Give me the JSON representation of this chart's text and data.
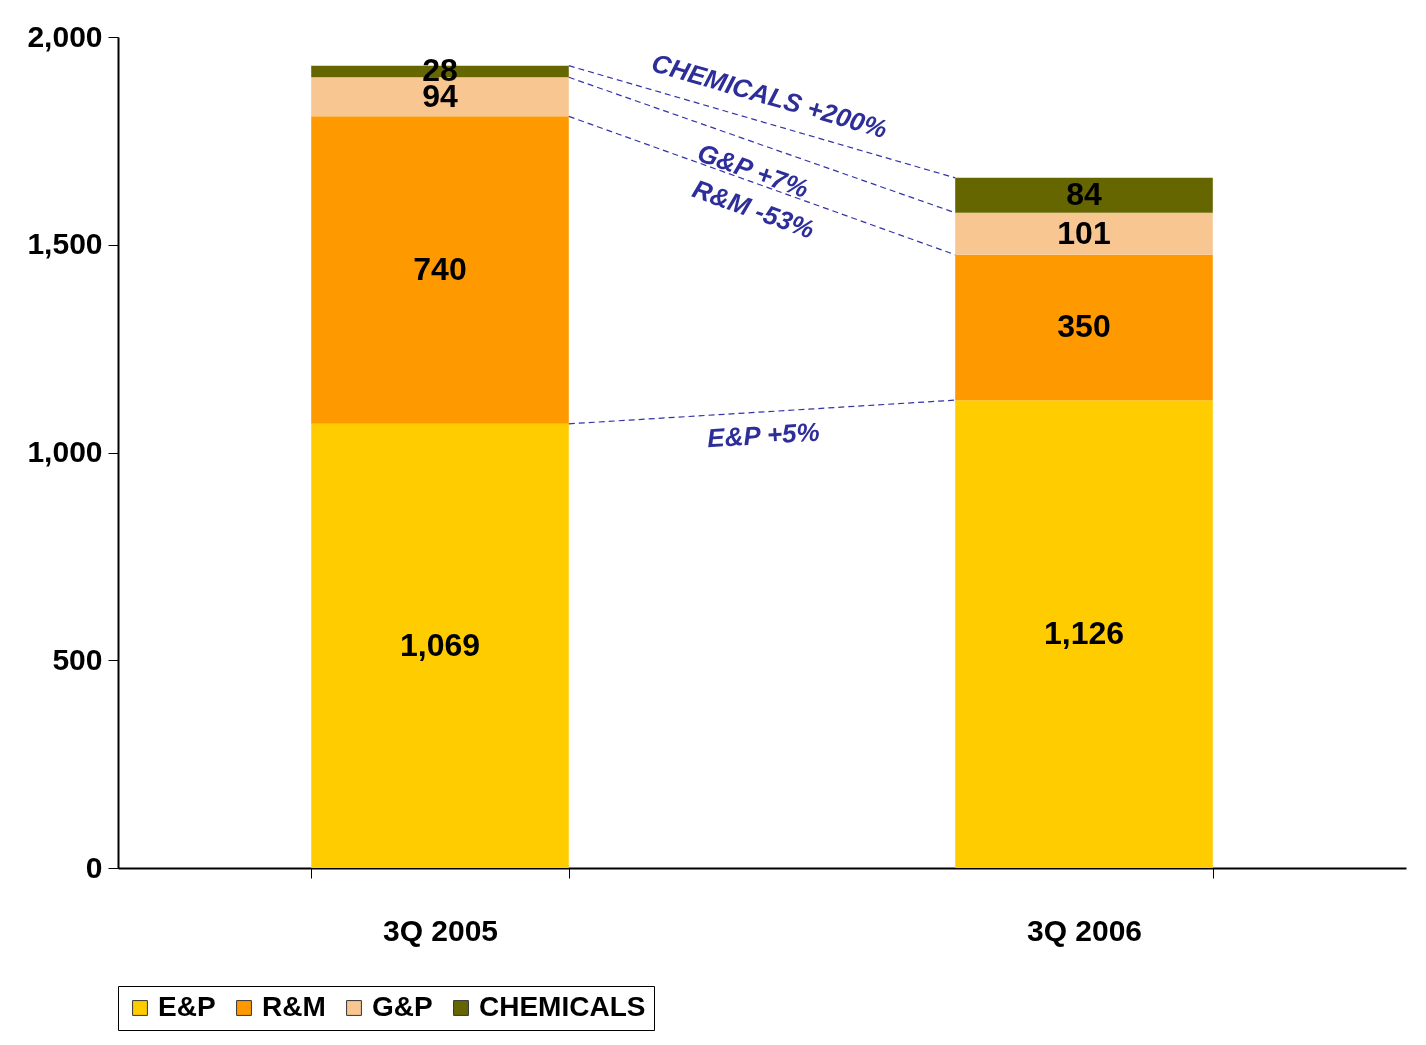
{
  "chart_data": {
    "type": "bar",
    "stacked": true,
    "categories": [
      "3Q 2005",
      "3Q 2006"
    ],
    "series": [
      {
        "name": "E&P",
        "color": "#ffcc00",
        "values": [
          1069,
          1126
        ]
      },
      {
        "name": "R&M",
        "color": "#ff9900",
        "values": [
          740,
          350
        ]
      },
      {
        "name": "G&P",
        "color": "#f8c690",
        "values": [
          94,
          101
        ]
      },
      {
        "name": "CHEMICALS",
        "color": "#666600",
        "values": [
          28,
          84
        ]
      }
    ],
    "ylim": [
      0,
      2000
    ],
    "yticks": [
      {
        "value": 0,
        "label": "0"
      },
      {
        "value": 500,
        "label": "500"
      },
      {
        "value": 1000,
        "label": "1,000"
      },
      {
        "value": 1500,
        "label": "1,500"
      },
      {
        "value": 2000,
        "label": "2,000"
      }
    ],
    "value_labels": [
      [
        "1,069",
        "1,126"
      ],
      [
        "740",
        "350"
      ],
      [
        "94",
        "101"
      ],
      [
        "28",
        "84"
      ]
    ],
    "grid": false,
    "legend": "bottom",
    "annotations": [
      "E&P +5%",
      "R&M -53%",
      "G&P +7%",
      "CHEMICALS +200%"
    ]
  }
}
